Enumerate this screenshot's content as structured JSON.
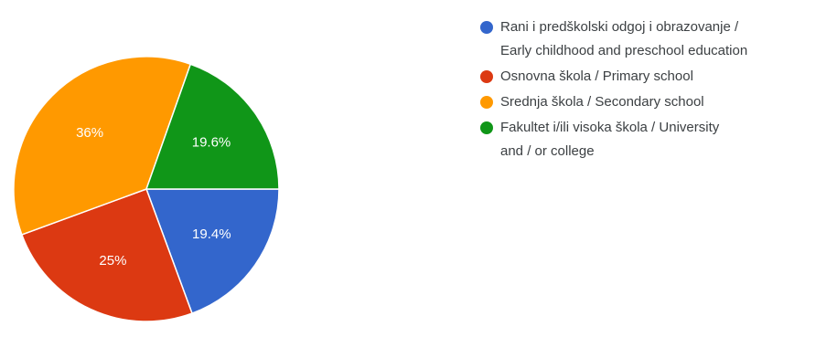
{
  "chart_data": {
    "type": "pie",
    "series": [
      {
        "slices": [
          {
            "label": "Rani i predškolski odgoj i obrazovanje /\nEarly childhood and preschool education",
            "value": 19.4,
            "display": "19.4%",
            "color": "#3366cc"
          },
          {
            "label": "Osnovna škola / Primary school",
            "value": 25,
            "display": "25%",
            "color": "#dc3912"
          },
          {
            "label": "Srednja škola / Secondary school",
            "value": 36,
            "display": "36%",
            "color": "#ff9900"
          },
          {
            "label": "Fakultet i/ili visoka škola / University\nand / or college",
            "value": 19.6,
            "display": "19.6%",
            "color": "#109618"
          }
        ]
      }
    ],
    "legend_position": "right"
  }
}
